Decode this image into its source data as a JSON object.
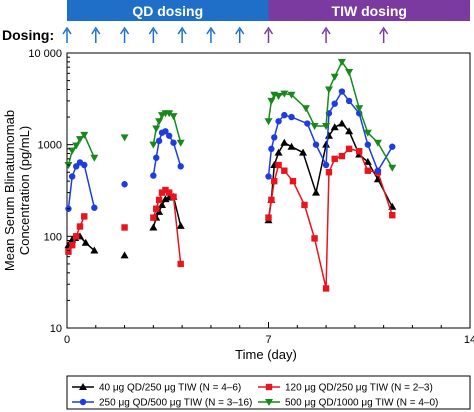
{
  "dosing_label": "Dosing:",
  "bands": [
    {
      "label": "QD dosing",
      "color": "#1f6fc8",
      "x_start": 0,
      "x_end": 7
    },
    {
      "label": "TIW dosing",
      "color": "#7b3aa0",
      "x_start": 7,
      "x_end": 14
    }
  ],
  "dose_markers": {
    "qd_color": "#1f6fc8",
    "tiw_color": "#7b3aa0",
    "qd_days": [
      0,
      1,
      2,
      3,
      4,
      5,
      6
    ],
    "tiw_days": [
      7,
      9,
      11
    ]
  },
  "chart_data": {
    "type": "line",
    "xlabel": "Time (day)",
    "ylabel": "Mean Serum Blinatumomab Concentration (pg/mL)",
    "ylabel_lines": [
      "Mean Serum Blinatumomab",
      "Concentration (pg/mL)"
    ],
    "xlim": [
      0,
      14
    ],
    "ylim": [
      10,
      10000
    ],
    "yscale": "log",
    "x_ticks": [
      0,
      7,
      14
    ],
    "x_tick_labels": [
      "0",
      "7",
      "14"
    ],
    "y_ticks": [
      10,
      100,
      1000,
      10000
    ],
    "y_tick_labels": [
      "10",
      "100",
      "1000",
      "10 000"
    ],
    "series": [
      {
        "name": "40 μg QD/250 μg TIW (N = 4–6)",
        "color": "#000000",
        "marker": "triangle-up",
        "segments": [
          [
            [
              0.05,
              80
            ],
            [
              0.18,
              92
            ],
            [
              0.28,
              96
            ],
            [
              0.45,
              100
            ],
            [
              0.65,
              85
            ],
            [
              0.95,
              70
            ]
          ],
          [
            [
              2.0,
              62
            ]
          ],
          [
            [
              3.0,
              125
            ],
            [
              3.1,
              160
            ],
            [
              3.2,
              185
            ],
            [
              3.3,
              220
            ],
            [
              3.42,
              255
            ],
            [
              3.55,
              265
            ],
            [
              3.7,
              270
            ],
            [
              3.95,
              130
            ]
          ],
          [
            [
              7.0,
              150
            ],
            [
              7.1,
              250
            ],
            [
              7.2,
              600
            ],
            [
              7.35,
              820
            ],
            [
              7.55,
              1050
            ],
            [
              7.8,
              950
            ],
            [
              8.2,
              820
            ],
            [
              8.65,
              300
            ],
            [
              9.0,
              1000
            ],
            [
              9.1,
              1250
            ],
            [
              9.3,
              1550
            ],
            [
              9.55,
              1700
            ],
            [
              9.8,
              1400
            ],
            [
              10.15,
              780
            ],
            [
              10.45,
              650
            ],
            [
              10.8,
              420
            ],
            [
              11.3,
              210
            ]
          ]
        ]
      },
      {
        "name": "120 μg QD/250 μg TIW (N = 2–3)",
        "color": "#e8141e",
        "marker": "square",
        "segments": [
          [
            [
              0.05,
              68
            ],
            [
              0.18,
              80
            ],
            [
              0.32,
              100
            ],
            [
              0.45,
              128
            ],
            [
              0.6,
              165
            ]
          ],
          [
            [
              2.0,
              125
            ]
          ],
          [
            [
              3.0,
              160
            ],
            [
              3.1,
              200
            ],
            [
              3.2,
              250
            ],
            [
              3.3,
              300
            ],
            [
              3.42,
              320
            ],
            [
              3.55,
              300
            ],
            [
              3.7,
              270
            ],
            [
              3.95,
              50
            ]
          ],
          [
            [
              7.0,
              160
            ],
            [
              7.1,
              250
            ],
            [
              7.2,
              400
            ],
            [
              7.35,
              600
            ],
            [
              7.55,
              520
            ],
            [
              7.85,
              400
            ],
            [
              8.25,
              220
            ],
            [
              8.6,
              95
            ],
            [
              9.0,
              27
            ],
            [
              9.1,
              500
            ],
            [
              9.3,
              700
            ],
            [
              9.55,
              750
            ],
            [
              9.8,
              900
            ],
            [
              10.15,
              850
            ],
            [
              10.45,
              520
            ],
            [
              10.8,
              500
            ],
            [
              11.3,
              170
            ]
          ]
        ]
      },
      {
        "name": "250 μg QD/500 μg TIW (N = 3–16)",
        "color": "#1e3de0",
        "marker": "circle",
        "segments": [
          [
            [
              0.05,
              200
            ],
            [
              0.18,
              450
            ],
            [
              0.32,
              580
            ],
            [
              0.45,
              640
            ],
            [
              0.6,
              600
            ],
            [
              0.95,
              205
            ]
          ],
          [
            [
              2.0,
              370
            ]
          ],
          [
            [
              3.0,
              460
            ],
            [
              3.1,
              720
            ],
            [
              3.2,
              1100
            ],
            [
              3.3,
              1350
            ],
            [
              3.42,
              1400
            ],
            [
              3.55,
              1250
            ],
            [
              3.7,
              1050
            ],
            [
              3.95,
              580
            ]
          ],
          [
            [
              7.0,
              450
            ],
            [
              7.1,
              900
            ],
            [
              7.2,
              1200
            ],
            [
              7.35,
              1800
            ],
            [
              7.55,
              2100
            ],
            [
              7.8,
              2000
            ],
            [
              8.35,
              1700
            ],
            [
              8.65,
              1000
            ],
            [
              9.0,
              600
            ],
            [
              9.1,
              2200
            ],
            [
              9.3,
              2800
            ],
            [
              9.55,
              3800
            ],
            [
              9.8,
              3000
            ],
            [
              10.15,
              2200
            ],
            [
              10.45,
              1000
            ],
            [
              10.8,
              520
            ],
            [
              11.3,
              950
            ]
          ]
        ]
      },
      {
        "name": "500 μg QD/1000 μg TIW (N = 4–0)",
        "color": "#17891a",
        "marker": "triangle-down",
        "segments": [
          [
            [
              0.05,
              600
            ],
            [
              0.18,
              860
            ],
            [
              0.32,
              980
            ],
            [
              0.45,
              1150
            ],
            [
              0.6,
              1280
            ],
            [
              0.95,
              720
            ]
          ],
          [
            [
              2.0,
              1200
            ]
          ],
          [
            [
              3.0,
              1000
            ],
            [
              3.1,
              1500
            ],
            [
              3.2,
              1800
            ],
            [
              3.3,
              2100
            ],
            [
              3.42,
              2200
            ],
            [
              3.55,
              2200
            ],
            [
              3.7,
              2050
            ],
            [
              3.95,
              1050
            ]
          ],
          [
            [
              7.0,
              1800
            ],
            [
              7.1,
              3000
            ],
            [
              7.2,
              3500
            ],
            [
              7.35,
              3400
            ],
            [
              7.55,
              3600
            ],
            [
              7.8,
              3500
            ],
            [
              8.3,
              2500
            ],
            [
              8.6,
              1600
            ],
            [
              9.0,
              1600
            ],
            [
              9.1,
              4000
            ],
            [
              9.3,
              5500
            ],
            [
              9.55,
              8000
            ],
            [
              9.8,
              6200
            ],
            [
              10.15,
              2500
            ],
            [
              10.45,
              1350
            ],
            [
              10.8,
              1050
            ],
            [
              11.3,
              560
            ]
          ]
        ]
      }
    ]
  }
}
